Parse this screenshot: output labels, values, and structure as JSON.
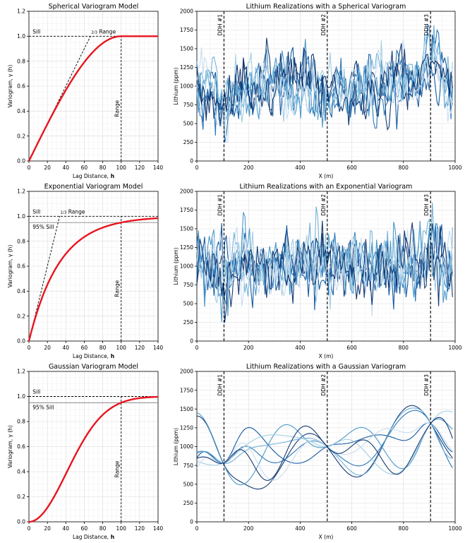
{
  "colors": {
    "model_curve": "#e8141f",
    "realization_palette": [
      "#08306b",
      "#08519c",
      "#2171b5",
      "#4292c6",
      "#6baed6",
      "#9ecae1",
      "#c6dbef"
    ],
    "reference_line": "#000000",
    "grid": "#dddddd"
  },
  "chart_data": [
    {
      "type": "line",
      "id": "spherical_model",
      "title": "Spherical Variogram Model",
      "xlabel": "Lag Distance,",
      "xlabel_bold": "h",
      "ylabel": "Variogram, γ (h)",
      "xlim": [
        0,
        140
      ],
      "ylim": [
        0,
        1.2
      ],
      "xticks": [
        "0",
        "20",
        "40",
        "60",
        "80",
        "100",
        "120",
        "140"
      ],
      "yticks": [
        "0.0",
        "0.2",
        "0.4",
        "0.6",
        "0.8",
        "1.0",
        "1.2"
      ],
      "grid": true,
      "model": "spherical",
      "range": 100,
      "sill": 1.0,
      "annotations": {
        "sill": "Sill",
        "range": "Range",
        "tangent": "2/3 Range",
        "tangent_at": 66.7
      },
      "series": [
        {
          "values_note": "",
          "x": [
            0,
            10,
            20,
            30,
            40,
            50,
            60,
            70,
            80,
            90,
            100,
            110,
            120,
            130,
            140
          ],
          "y": [
            0,
            0.15,
            0.296,
            0.437,
            0.568,
            0.688,
            0.792,
            0.879,
            0.944,
            0.986,
            1.0,
            1.0,
            1.0,
            1.0,
            1.0
          ]
        }
      ]
    },
    {
      "type": "line",
      "id": "spherical_realizations",
      "title": "Lithium Realizations with a Spherical Variogram",
      "xlabel": "X (m)",
      "ylabel": "Lithium (ppm)",
      "xlim": [
        0,
        1000
      ],
      "ylim": [
        0,
        2000
      ],
      "xticks": [
        "0",
        "200",
        "400",
        "600",
        "800",
        "1000"
      ],
      "yticks": [
        "0",
        "250",
        "500",
        "750",
        "1000",
        "1250",
        "1500",
        "1750",
        "2000"
      ],
      "grid": true,
      "wells": [
        {
          "label": "DDH #1",
          "x": 105
        },
        {
          "label": "DDH #2",
          "x": 505
        },
        {
          "label": "DDH #3",
          "x": 905
        }
      ],
      "conditioning": [
        {
          "x": 105,
          "y": 780
        },
        {
          "x": 505,
          "y": 1000
        },
        {
          "x": 905,
          "y": 1310
        }
      ],
      "realizations": 8,
      "roughness": "spherical",
      "seed": 11
    },
    {
      "type": "line",
      "id": "exponential_model",
      "title": "Exponential Variogram Model",
      "xlabel": "Lag Distance,",
      "xlabel_bold": "h",
      "ylabel": "Variogram, γ (h)",
      "xlim": [
        0,
        140
      ],
      "ylim": [
        0,
        1.2
      ],
      "xticks": [
        "0",
        "20",
        "40",
        "60",
        "80",
        "100",
        "120",
        "140"
      ],
      "yticks": [
        "0.0",
        "0.2",
        "0.4",
        "0.6",
        "0.8",
        "1.0",
        "1.2"
      ],
      "grid": true,
      "model": "exponential",
      "range": 100,
      "sill": 1.0,
      "annotations": {
        "sill": "Sill",
        "sill95": "95% Sill",
        "range": "Range",
        "tangent": "1/3 Range",
        "tangent_at": 33.3
      },
      "series": [
        {
          "x": [
            0,
            10,
            20,
            30,
            40,
            50,
            60,
            70,
            80,
            90,
            100,
            110,
            120,
            130,
            140
          ],
          "y": [
            0,
            0.259,
            0.451,
            0.593,
            0.699,
            0.777,
            0.835,
            0.878,
            0.909,
            0.933,
            0.95,
            0.963,
            0.973,
            0.98,
            0.985
          ]
        }
      ]
    },
    {
      "type": "line",
      "id": "exponential_realizations",
      "title": "Lithium Realizations with an Exponential Variogram",
      "xlabel": "X (m)",
      "ylabel": "Lithium (ppm)",
      "xlim": [
        0,
        1000
      ],
      "ylim": [
        0,
        2000
      ],
      "xticks": [
        "0",
        "200",
        "400",
        "600",
        "800",
        "1000"
      ],
      "yticks": [
        "0",
        "250",
        "500",
        "750",
        "1000",
        "1250",
        "1500",
        "1750",
        "2000"
      ],
      "grid": true,
      "wells": [
        {
          "label": "DDH #1",
          "x": 105
        },
        {
          "label": "DDH #2",
          "x": 505
        },
        {
          "label": "DDH #3",
          "x": 905
        }
      ],
      "conditioning": [
        {
          "x": 105,
          "y": 780
        },
        {
          "x": 505,
          "y": 1000
        },
        {
          "x": 905,
          "y": 1310
        }
      ],
      "realizations": 8,
      "roughness": "exponential",
      "seed": 23
    },
    {
      "type": "line",
      "id": "gaussian_model",
      "title": "Gaussian Variogram Model",
      "xlabel": "Lag Distance,",
      "xlabel_bold": "h",
      "ylabel": "Variogram, γ (h)",
      "xlim": [
        0,
        140
      ],
      "ylim": [
        0,
        1.2
      ],
      "xticks": [
        "0",
        "20",
        "40",
        "60",
        "80",
        "100",
        "120",
        "140"
      ],
      "yticks": [
        "0.0",
        "0.2",
        "0.4",
        "0.6",
        "0.8",
        "1.0",
        "1.2"
      ],
      "grid": true,
      "model": "gaussian",
      "range": 100,
      "sill": 1.0,
      "annotations": {
        "sill": "Sill",
        "sill95": "95% Sill",
        "range": "Range"
      },
      "series": [
        {
          "x": [
            0,
            10,
            20,
            30,
            40,
            50,
            60,
            70,
            80,
            90,
            100,
            110,
            120,
            130,
            140
          ],
          "y": [
            0,
            0.03,
            0.113,
            0.237,
            0.381,
            0.528,
            0.66,
            0.771,
            0.853,
            0.911,
            0.95,
            0.973,
            0.987,
            0.994,
            0.997
          ]
        }
      ]
    },
    {
      "type": "line",
      "id": "gaussian_realizations",
      "title": "Lithium Realizations with a Gaussian Variogram",
      "xlabel": "X (m)",
      "ylabel": "Lithium (ppm)",
      "xlim": [
        0,
        1000
      ],
      "ylim": [
        0,
        2000
      ],
      "xticks": [
        "0",
        "200",
        "400",
        "600",
        "800",
        "1000"
      ],
      "yticks": [
        "0",
        "250",
        "500",
        "750",
        "1000",
        "1250",
        "1500",
        "1750",
        "2000"
      ],
      "grid": true,
      "wells": [
        {
          "label": "DDH #1",
          "x": 105
        },
        {
          "label": "DDH #2",
          "x": 505
        },
        {
          "label": "DDH #3",
          "x": 905
        }
      ],
      "conditioning": [
        {
          "x": 105,
          "y": 780
        },
        {
          "x": 505,
          "y": 1000
        },
        {
          "x": 905,
          "y": 1310
        }
      ],
      "realizations": 8,
      "roughness": "gaussian",
      "seed": 37
    }
  ]
}
